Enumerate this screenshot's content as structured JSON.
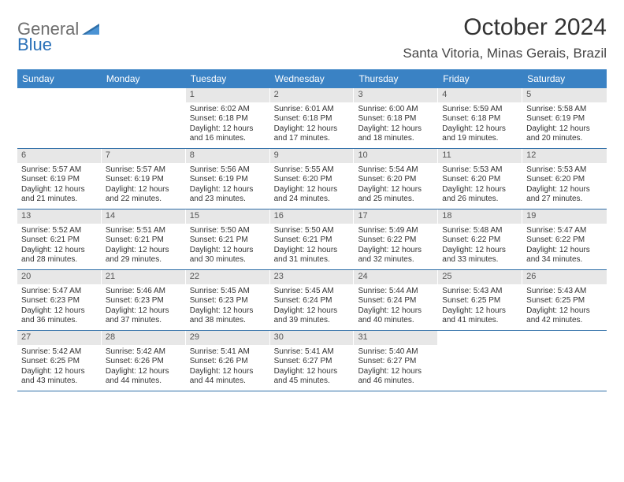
{
  "logo": {
    "general": "General",
    "blue": "Blue"
  },
  "title": "October 2024",
  "location": "Santa Vitoria, Minas Gerais, Brazil",
  "colors": {
    "header_bg": "#3a82c4",
    "daynum_bg": "#e7e7e7",
    "rule": "#2f6fa8",
    "logo_gray": "#6e6e6e",
    "logo_blue": "#2970b8"
  },
  "weekdays": [
    "Sunday",
    "Monday",
    "Tuesday",
    "Wednesday",
    "Thursday",
    "Friday",
    "Saturday"
  ],
  "weeks": [
    [
      {
        "n": "",
        "sr": "",
        "ss": "",
        "dl": ""
      },
      {
        "n": "",
        "sr": "",
        "ss": "",
        "dl": ""
      },
      {
        "n": "1",
        "sr": "Sunrise: 6:02 AM",
        "ss": "Sunset: 6:18 PM",
        "dl": "Daylight: 12 hours and 16 minutes."
      },
      {
        "n": "2",
        "sr": "Sunrise: 6:01 AM",
        "ss": "Sunset: 6:18 PM",
        "dl": "Daylight: 12 hours and 17 minutes."
      },
      {
        "n": "3",
        "sr": "Sunrise: 6:00 AM",
        "ss": "Sunset: 6:18 PM",
        "dl": "Daylight: 12 hours and 18 minutes."
      },
      {
        "n": "4",
        "sr": "Sunrise: 5:59 AM",
        "ss": "Sunset: 6:18 PM",
        "dl": "Daylight: 12 hours and 19 minutes."
      },
      {
        "n": "5",
        "sr": "Sunrise: 5:58 AM",
        "ss": "Sunset: 6:19 PM",
        "dl": "Daylight: 12 hours and 20 minutes."
      }
    ],
    [
      {
        "n": "6",
        "sr": "Sunrise: 5:57 AM",
        "ss": "Sunset: 6:19 PM",
        "dl": "Daylight: 12 hours and 21 minutes."
      },
      {
        "n": "7",
        "sr": "Sunrise: 5:57 AM",
        "ss": "Sunset: 6:19 PM",
        "dl": "Daylight: 12 hours and 22 minutes."
      },
      {
        "n": "8",
        "sr": "Sunrise: 5:56 AM",
        "ss": "Sunset: 6:19 PM",
        "dl": "Daylight: 12 hours and 23 minutes."
      },
      {
        "n": "9",
        "sr": "Sunrise: 5:55 AM",
        "ss": "Sunset: 6:20 PM",
        "dl": "Daylight: 12 hours and 24 minutes."
      },
      {
        "n": "10",
        "sr": "Sunrise: 5:54 AM",
        "ss": "Sunset: 6:20 PM",
        "dl": "Daylight: 12 hours and 25 minutes."
      },
      {
        "n": "11",
        "sr": "Sunrise: 5:53 AM",
        "ss": "Sunset: 6:20 PM",
        "dl": "Daylight: 12 hours and 26 minutes."
      },
      {
        "n": "12",
        "sr": "Sunrise: 5:53 AM",
        "ss": "Sunset: 6:20 PM",
        "dl": "Daylight: 12 hours and 27 minutes."
      }
    ],
    [
      {
        "n": "13",
        "sr": "Sunrise: 5:52 AM",
        "ss": "Sunset: 6:21 PM",
        "dl": "Daylight: 12 hours and 28 minutes."
      },
      {
        "n": "14",
        "sr": "Sunrise: 5:51 AM",
        "ss": "Sunset: 6:21 PM",
        "dl": "Daylight: 12 hours and 29 minutes."
      },
      {
        "n": "15",
        "sr": "Sunrise: 5:50 AM",
        "ss": "Sunset: 6:21 PM",
        "dl": "Daylight: 12 hours and 30 minutes."
      },
      {
        "n": "16",
        "sr": "Sunrise: 5:50 AM",
        "ss": "Sunset: 6:21 PM",
        "dl": "Daylight: 12 hours and 31 minutes."
      },
      {
        "n": "17",
        "sr": "Sunrise: 5:49 AM",
        "ss": "Sunset: 6:22 PM",
        "dl": "Daylight: 12 hours and 32 minutes."
      },
      {
        "n": "18",
        "sr": "Sunrise: 5:48 AM",
        "ss": "Sunset: 6:22 PM",
        "dl": "Daylight: 12 hours and 33 minutes."
      },
      {
        "n": "19",
        "sr": "Sunrise: 5:47 AM",
        "ss": "Sunset: 6:22 PM",
        "dl": "Daylight: 12 hours and 34 minutes."
      }
    ],
    [
      {
        "n": "20",
        "sr": "Sunrise: 5:47 AM",
        "ss": "Sunset: 6:23 PM",
        "dl": "Daylight: 12 hours and 36 minutes."
      },
      {
        "n": "21",
        "sr": "Sunrise: 5:46 AM",
        "ss": "Sunset: 6:23 PM",
        "dl": "Daylight: 12 hours and 37 minutes."
      },
      {
        "n": "22",
        "sr": "Sunrise: 5:45 AM",
        "ss": "Sunset: 6:23 PM",
        "dl": "Daylight: 12 hours and 38 minutes."
      },
      {
        "n": "23",
        "sr": "Sunrise: 5:45 AM",
        "ss": "Sunset: 6:24 PM",
        "dl": "Daylight: 12 hours and 39 minutes."
      },
      {
        "n": "24",
        "sr": "Sunrise: 5:44 AM",
        "ss": "Sunset: 6:24 PM",
        "dl": "Daylight: 12 hours and 40 minutes."
      },
      {
        "n": "25",
        "sr": "Sunrise: 5:43 AM",
        "ss": "Sunset: 6:25 PM",
        "dl": "Daylight: 12 hours and 41 minutes."
      },
      {
        "n": "26",
        "sr": "Sunrise: 5:43 AM",
        "ss": "Sunset: 6:25 PM",
        "dl": "Daylight: 12 hours and 42 minutes."
      }
    ],
    [
      {
        "n": "27",
        "sr": "Sunrise: 5:42 AM",
        "ss": "Sunset: 6:25 PM",
        "dl": "Daylight: 12 hours and 43 minutes."
      },
      {
        "n": "28",
        "sr": "Sunrise: 5:42 AM",
        "ss": "Sunset: 6:26 PM",
        "dl": "Daylight: 12 hours and 44 minutes."
      },
      {
        "n": "29",
        "sr": "Sunrise: 5:41 AM",
        "ss": "Sunset: 6:26 PM",
        "dl": "Daylight: 12 hours and 44 minutes."
      },
      {
        "n": "30",
        "sr": "Sunrise: 5:41 AM",
        "ss": "Sunset: 6:27 PM",
        "dl": "Daylight: 12 hours and 45 minutes."
      },
      {
        "n": "31",
        "sr": "Sunrise: 5:40 AM",
        "ss": "Sunset: 6:27 PM",
        "dl": "Daylight: 12 hours and 46 minutes."
      },
      {
        "n": "",
        "sr": "",
        "ss": "",
        "dl": ""
      },
      {
        "n": "",
        "sr": "",
        "ss": "",
        "dl": ""
      }
    ]
  ]
}
